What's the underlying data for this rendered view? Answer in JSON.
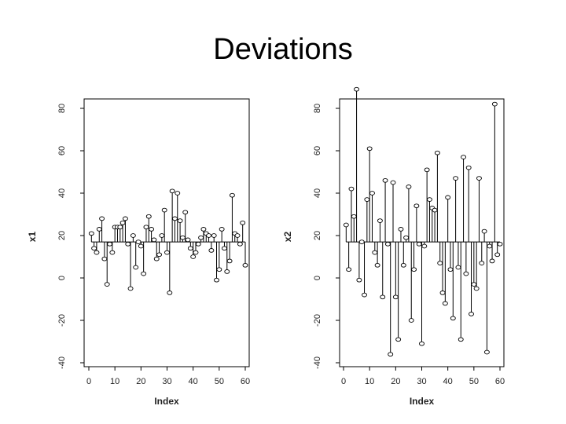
{
  "slide": {
    "title": "Deviations"
  },
  "chart_data": [
    {
      "type": "scatter",
      "style": "deviation-needles-from-reference-line",
      "xlabel": "Index",
      "ylabel": "x1",
      "xlim": [
        0,
        60
      ],
      "ylim": [
        -40,
        90
      ],
      "x_ticks": [
        0,
        10,
        20,
        30,
        40,
        50,
        60
      ],
      "y_ticks": [
        -40,
        -20,
        0,
        20,
        40,
        60,
        80
      ],
      "x_tick_labels": [
        "0",
        "10",
        "20",
        "30",
        "40",
        "50",
        "60"
      ],
      "y_tick_labels": [
        "-40",
        "-20",
        "0",
        "20",
        "40",
        "60",
        "80"
      ],
      "reference_value": 17,
      "grid": false,
      "x": [
        1,
        2,
        3,
        4,
        5,
        6,
        7,
        8,
        9,
        10,
        11,
        12,
        13,
        14,
        15,
        16,
        17,
        18,
        19,
        20,
        21,
        22,
        23,
        24,
        25,
        26,
        27,
        28,
        29,
        30,
        31,
        32,
        33,
        34,
        35,
        36,
        37,
        38,
        39,
        40,
        41,
        42,
        43,
        44,
        45,
        46,
        47,
        48,
        49,
        50,
        51,
        52,
        53,
        54,
        55,
        56,
        57,
        58,
        59,
        60
      ],
      "values": [
        21,
        14,
        12,
        23,
        28,
        9,
        -3,
        16,
        12,
        24,
        24,
        24,
        26,
        28,
        16,
        -5,
        20,
        5,
        17,
        15,
        2,
        24,
        29,
        23,
        18,
        9,
        11,
        20,
        32,
        12,
        -7,
        41,
        28,
        40,
        27,
        19,
        31,
        18,
        14,
        10,
        12,
        16,
        19,
        23,
        21,
        20,
        13,
        20,
        -1,
        4,
        23,
        14,
        3,
        8,
        39,
        21,
        20,
        16,
        26,
        6
      ]
    },
    {
      "type": "scatter",
      "style": "deviation-needles-from-reference-line",
      "xlabel": "Index",
      "ylabel": "x2",
      "xlim": [
        0,
        60
      ],
      "ylim": [
        -40,
        90
      ],
      "x_ticks": [
        0,
        10,
        20,
        30,
        40,
        50,
        60
      ],
      "y_ticks": [
        -40,
        -20,
        0,
        20,
        40,
        60,
        80
      ],
      "x_tick_labels": [
        "0",
        "10",
        "20",
        "30",
        "40",
        "50",
        "60"
      ],
      "y_tick_labels": [
        "-40",
        "-20",
        "0",
        "20",
        "40",
        "60",
        "80"
      ],
      "reference_value": 17,
      "grid": false,
      "x": [
        1,
        2,
        3,
        4,
        5,
        6,
        7,
        8,
        9,
        10,
        11,
        12,
        13,
        14,
        15,
        16,
        17,
        18,
        19,
        20,
        21,
        22,
        23,
        24,
        25,
        26,
        27,
        28,
        29,
        30,
        31,
        32,
        33,
        34,
        35,
        36,
        37,
        38,
        39,
        40,
        41,
        42,
        43,
        44,
        45,
        46,
        47,
        48,
        49,
        50,
        51,
        52,
        53,
        54,
        55,
        56,
        57,
        58,
        59,
        60
      ],
      "values": [
        25,
        4,
        42,
        29,
        89,
        -1,
        17,
        -8,
        37,
        61,
        40,
        12,
        6,
        27,
        -9,
        46,
        16,
        -36,
        45,
        -9,
        -29,
        23,
        6,
        19,
        43,
        -20,
        4,
        34,
        16,
        -31,
        15,
        51,
        37,
        33,
        32,
        59,
        7,
        -7,
        -12,
        38,
        4,
        -19,
        47,
        5,
        -29,
        57,
        2,
        52,
        -17,
        -3,
        -5,
        47,
        7,
        22,
        -35,
        15,
        8,
        82,
        11,
        16
      ]
    }
  ]
}
